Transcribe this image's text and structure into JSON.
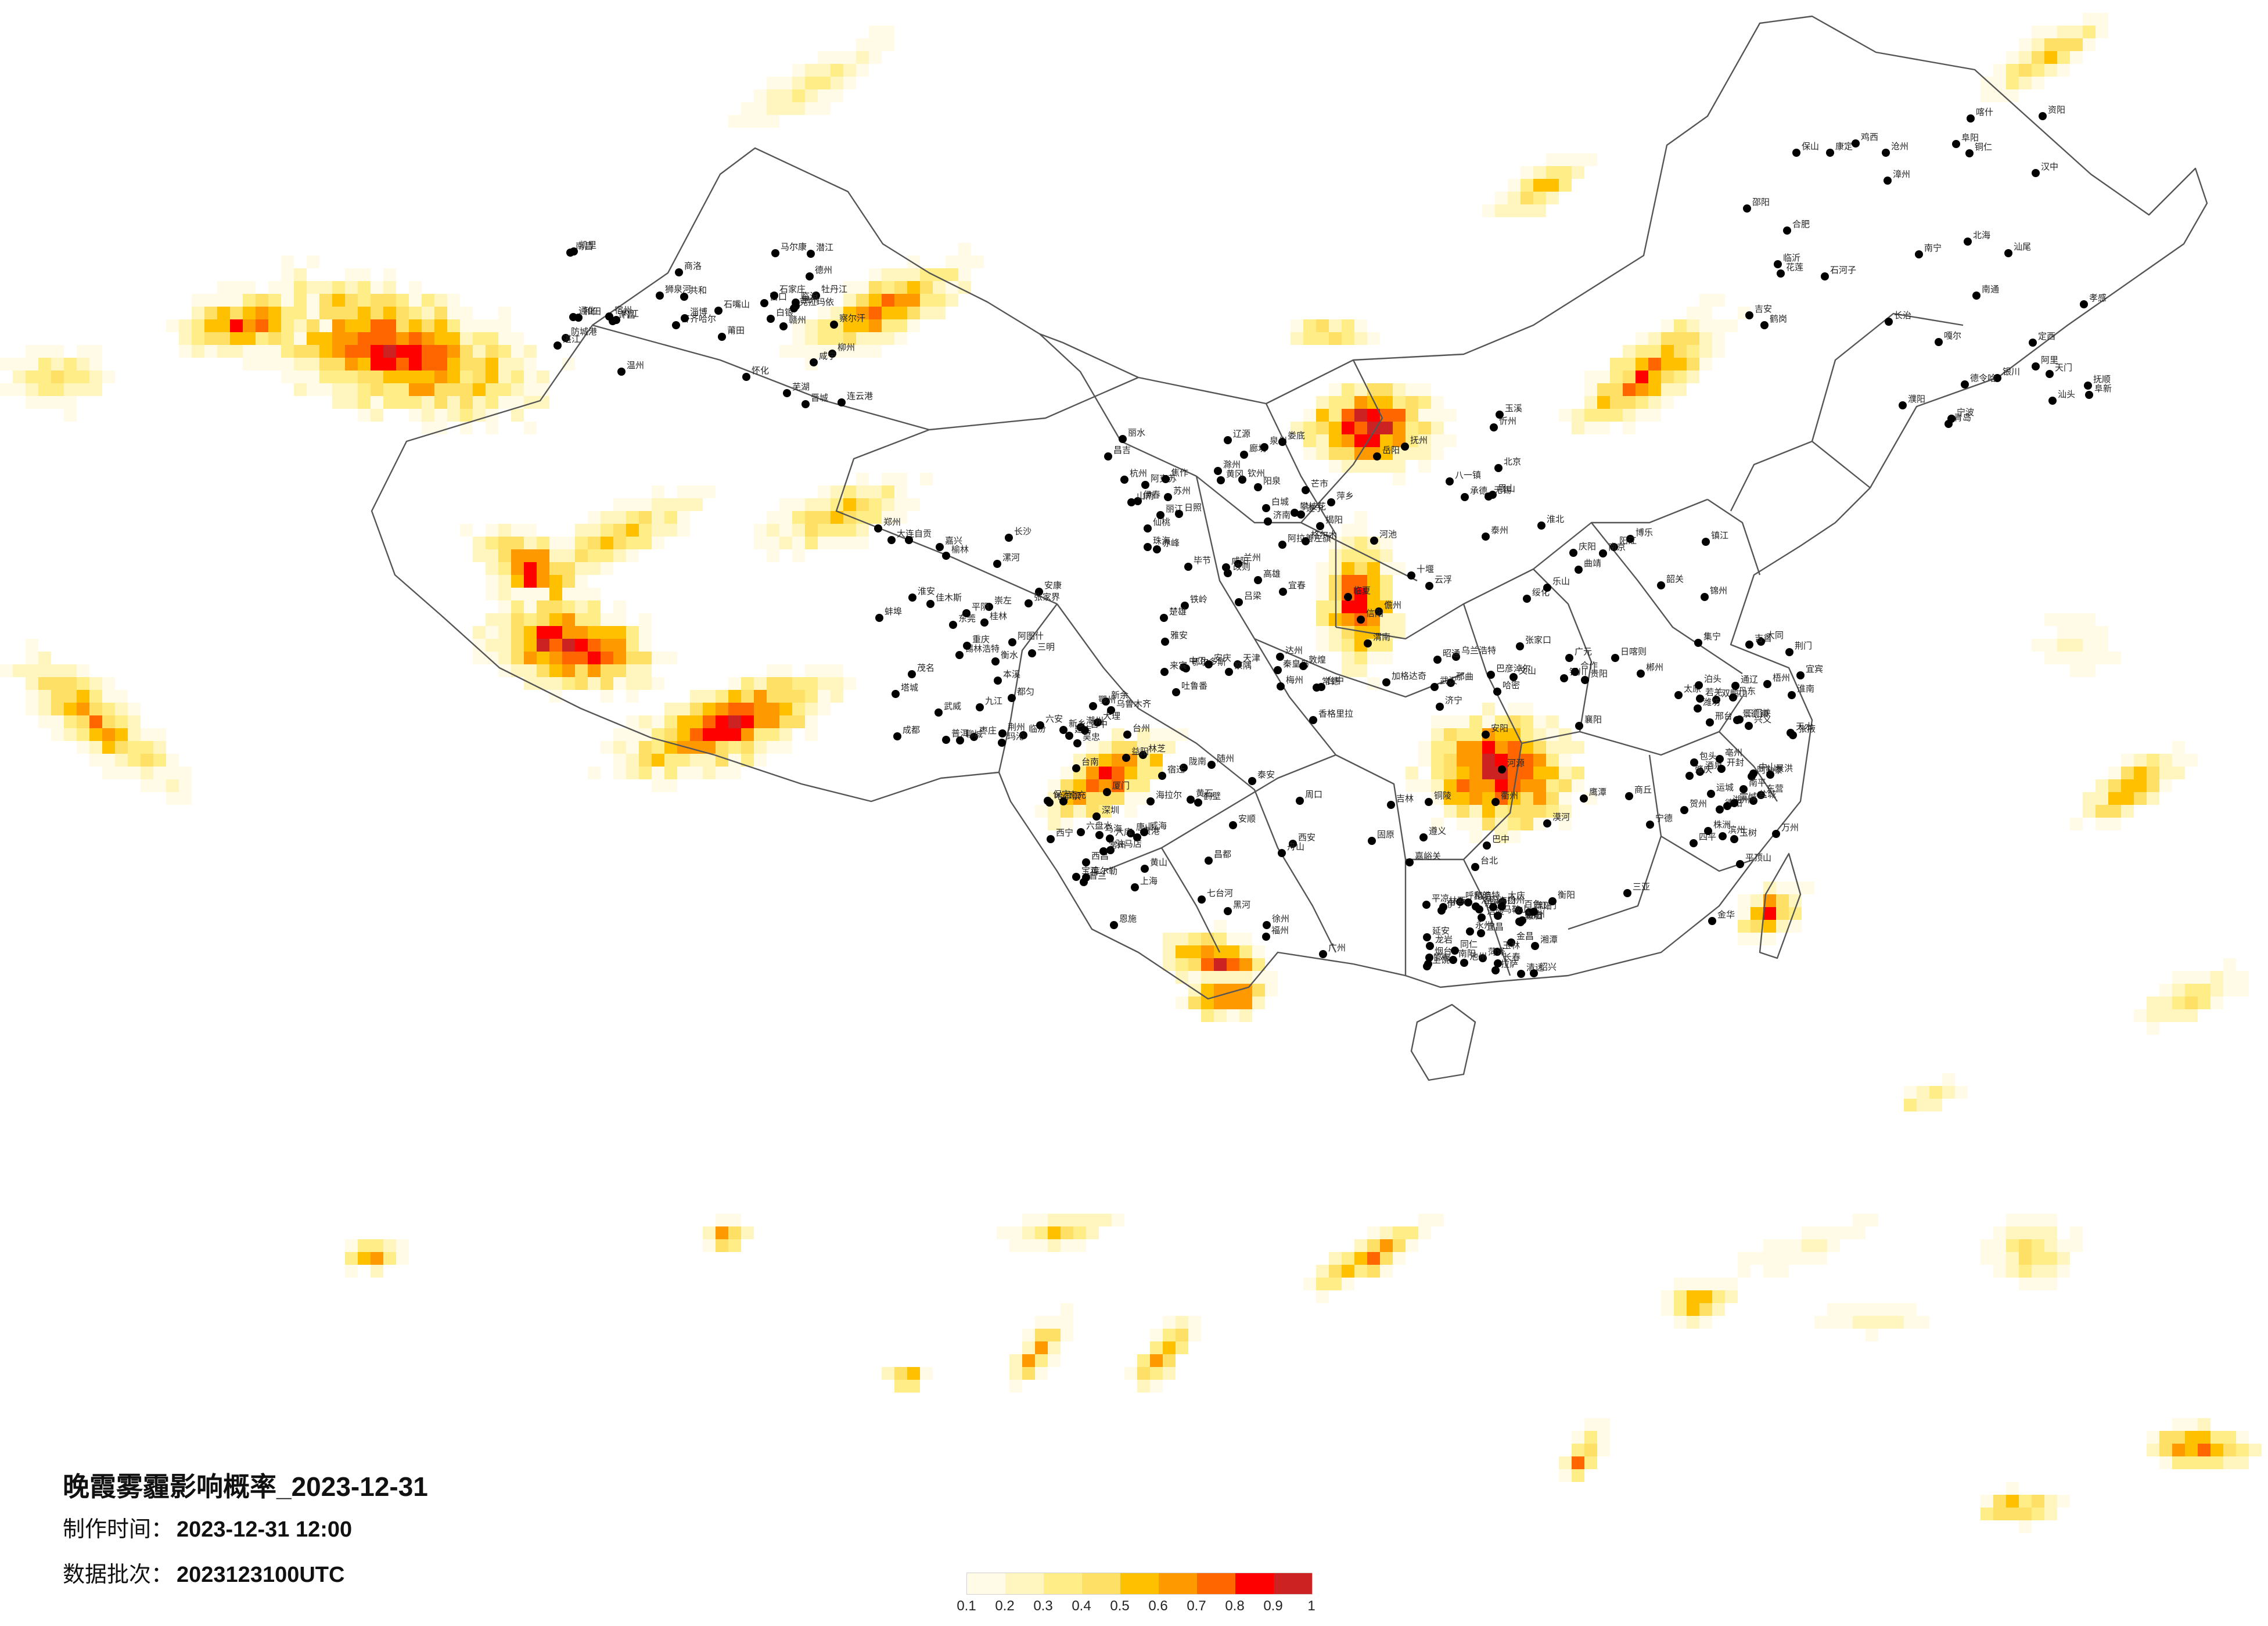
{
  "map_title": "晚霞雾霾影响概率_2023-12-31",
  "production_time": {
    "label": "制作时间：",
    "value": "2023-12-31 12:00"
  },
  "data_batch": {
    "label": "数据批次：",
    "value": "2023123100UTC"
  },
  "legend": {
    "colors": [
      "#fffbe6",
      "#fff6bf",
      "#ffee88",
      "#ffe066",
      "#ffc000",
      "#ff9900",
      "#ff6600",
      "#ff0000",
      "#cc2222"
    ],
    "ticks": [
      "0.1",
      "0.2",
      "0.3",
      "0.4",
      "0.5",
      "0.6",
      "0.7",
      "0.8",
      "0.9",
      "1"
    ]
  },
  "cities": [
    "漠河",
    "加格达奇",
    "黑河",
    "海拉尔",
    "伊春",
    "鹤岗",
    "齐齐哈尔",
    "佳木斯",
    "双鸭山",
    "大庆",
    "绥化",
    "乌兰浩特",
    "七台河",
    "哈尔滨",
    "白城",
    "鸡西",
    "牡丹江",
    "锡林浩特",
    "通辽",
    "长春",
    "四平",
    "吉林",
    "铁岭",
    "延吉",
    "辽源",
    "抚顺",
    "通化",
    "本溪",
    "丹东",
    "朝阳",
    "锦州",
    "承德",
    "秦皇岛",
    "唐山",
    "赤峰",
    "阜新",
    "营口",
    "大连",
    "集宁",
    "呼和浩特",
    "包头",
    "巴彦淖尔",
    "鄂尔多斯",
    "乌海",
    "阿拉善左旗",
    "银川",
    "石嘴山",
    "榆林",
    "大同",
    "朔州",
    "张家口",
    "北京",
    "天津",
    "保定",
    "廊坊",
    "沧州",
    "石家庄",
    "衡水",
    "邢台",
    "邯郸",
    "太原",
    "忻州",
    "吕梁",
    "晋中",
    "阳泉",
    "长治",
    "晋城",
    "临汾",
    "运城",
    "延安",
    "铜川",
    "渭南",
    "西安",
    "宝鸡",
    "咸阳",
    "汉中",
    "商洛",
    "安康",
    "天水",
    "平凉",
    "庆阳",
    "固原",
    "中卫",
    "吴忠",
    "兰州",
    "定西",
    "白银",
    "武威",
    "张掖",
    "金昌",
    "酒泉",
    "嘉峪关",
    "敦煌",
    "西宁",
    "格尔木",
    "德令哈",
    "共和",
    "玛沁",
    "玉树",
    "同仁",
    "合作",
    "临夏",
    "陇南",
    "乌鲁木齐",
    "昌吉",
    "石河子",
    "克拉玛依",
    "塔城",
    "阿勒泰",
    "伊宁",
    "博乐",
    "哈密",
    "吐鲁番",
    "库尔勒",
    "阿克苏",
    "喀什",
    "和田",
    "阿图什",
    "若羌",
    "拉萨",
    "日喀则",
    "那曲",
    "昌都",
    "林芝",
    "山南",
    "阿里",
    "狮泉河",
    "成都",
    "德阳",
    "绵阳",
    "广元",
    "巴中",
    "达州",
    "南充",
    "遂宁",
    "资阳",
    "内江",
    "自贡",
    "宜宾",
    "泸州",
    "乐山",
    "眉山",
    "雅安",
    "西昌",
    "攀枝花",
    "康定",
    "马尔康",
    "重庆",
    "万州",
    "涪陵",
    "贵阳",
    "遵义",
    "安顺",
    "六盘水",
    "毕节",
    "铜仁",
    "凯里",
    "都匀",
    "兴义",
    "昆明",
    "曲靖",
    "玉溪",
    "楚雄",
    "大理",
    "丽江",
    "保山",
    "临沧",
    "普洱",
    "景洪",
    "蒙自",
    "文山",
    "昭通",
    "香格里拉",
    "六库",
    "芒市",
    "南宁",
    "柳州",
    "桂林",
    "梧州",
    "玉林",
    "百色",
    "河池",
    "来宾",
    "贵港",
    "钦州",
    "北海",
    "防城港",
    "崇左",
    "贺州",
    "海口",
    "三亚",
    "儋州",
    "广州",
    "深圳",
    "珠海",
    "汕头",
    "湛江",
    "茂名",
    "肇庆",
    "清远",
    "韶关",
    "河源",
    "梅州",
    "潮州",
    "揭阳",
    "汕尾",
    "惠州",
    "东莞",
    "中山",
    "江门",
    "阳江",
    "云浮",
    "福州",
    "厦门",
    "泉州",
    "漳州",
    "莆田",
    "三明",
    "南平",
    "龙岩",
    "宁德",
    "台北",
    "台中",
    "台南",
    "高雄",
    "花莲",
    "南昌",
    "九江",
    "景德镇",
    "上饶",
    "鹰潭",
    "抚州",
    "宜春",
    "新余",
    "萍乡",
    "吉安",
    "赣州",
    "长沙",
    "株洲",
    "湘潭",
    "衡阳",
    "岳阳",
    "常德",
    "益阳",
    "娄底",
    "邵阳",
    "怀化",
    "张家界",
    "吉首",
    "永州",
    "郴州",
    "武汉",
    "黄石",
    "鄂州",
    "黄冈",
    "孝感",
    "咸宁",
    "荆州",
    "荆门",
    "宜昌",
    "襄阳",
    "十堰",
    "随州",
    "恩施",
    "仙桃",
    "天门",
    "潜江",
    "郑州",
    "开封",
    "洛阳",
    "平顶山",
    "安阳",
    "鹤壁",
    "新乡",
    "焦作",
    "濮阳",
    "许昌",
    "漯河",
    "三门峡",
    "南阳",
    "商丘",
    "信阳",
    "周口",
    "驻马店",
    "济南",
    "青岛",
    "淄博",
    "枣庄",
    "东营",
    "烟台",
    "潍坊",
    "济宁",
    "泰安",
    "威海",
    "日照",
    "临沂",
    "德州",
    "聊城",
    "滨州",
    "菏泽",
    "南京",
    "无锡",
    "徐州",
    "常州",
    "苏州",
    "南通",
    "连云港",
    "淮安",
    "盐城",
    "扬州",
    "镇江",
    "泰州",
    "宿迁",
    "上海",
    "杭州",
    "宁波",
    "温州",
    "嘉兴",
    "湖州",
    "绍兴",
    "金华",
    "衢州",
    "舟山",
    "台州",
    "丽水",
    "合肥",
    "芜湖",
    "蚌埠",
    "淮南",
    "马鞍山",
    "淮北",
    "铜陵",
    "安庆",
    "黄山",
    "滁州",
    "阜阳",
    "宿州",
    "六安",
    "亳州",
    "池州",
    "宣城",
    "八一镇",
    "察隅",
    "普兰",
    "改则",
    "嘎尔",
    "察尔汗",
    "平阴",
    "泊头",
    "林西"
  ]
}
